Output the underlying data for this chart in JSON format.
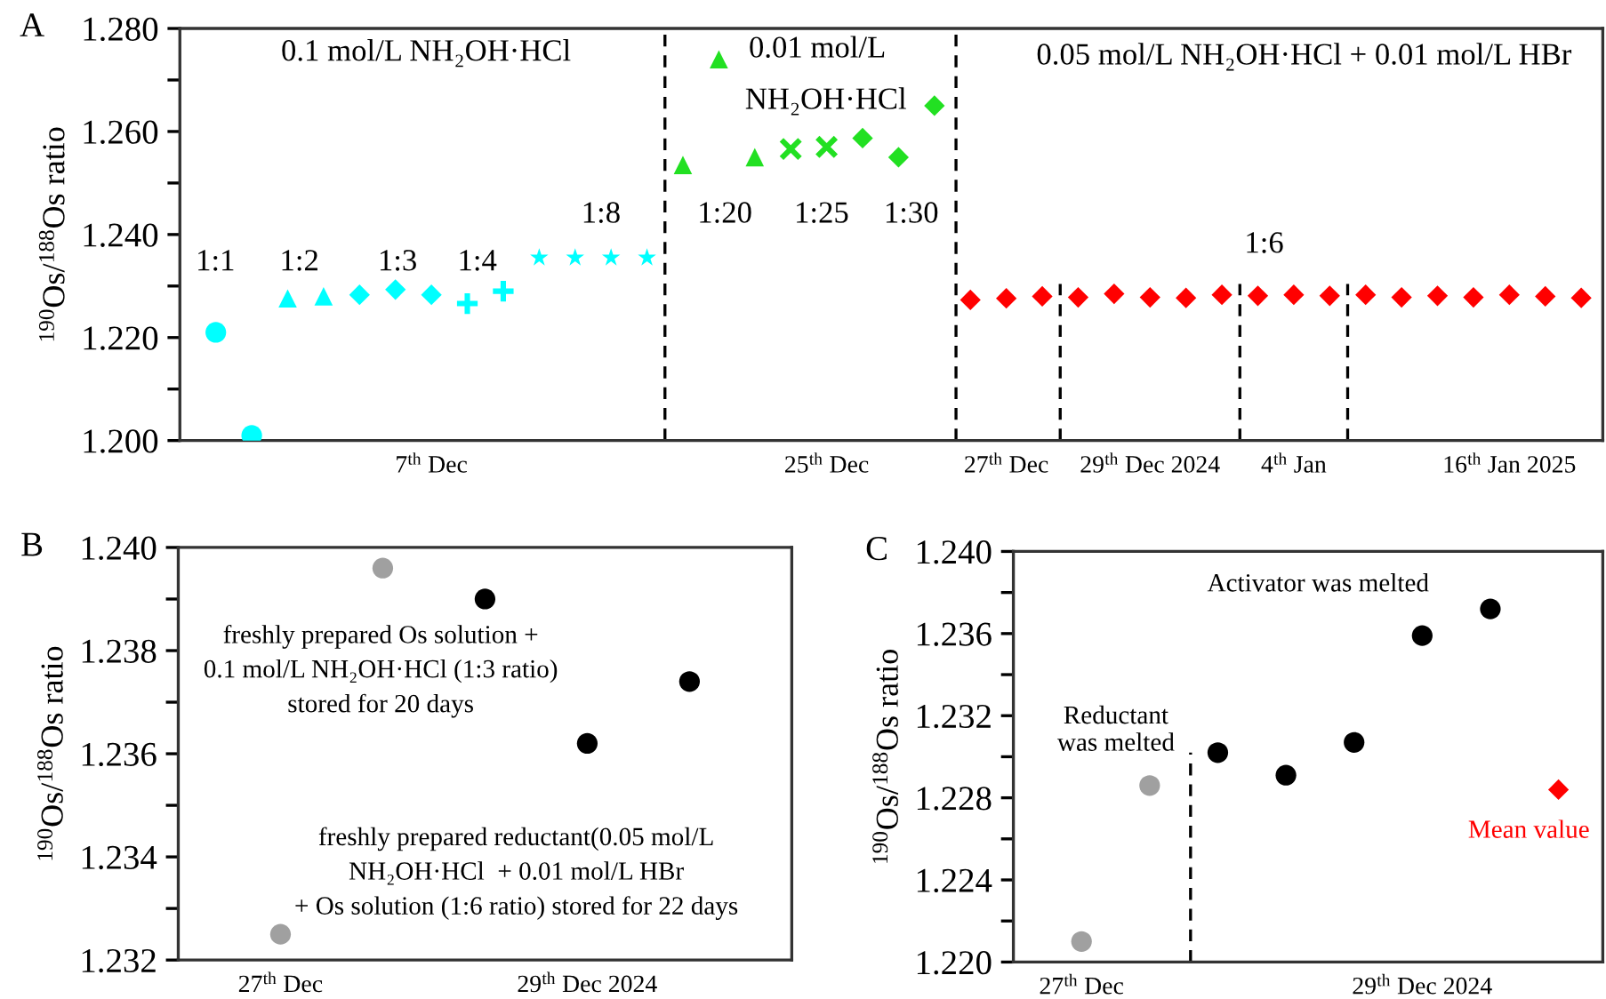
{
  "chart_data": [
    {
      "type": "scatter",
      "title": "A",
      "ylabel": "$^{190}$Os/$^{188}$Os ratio",
      "ylim": [
        1.2,
        1.28
      ],
      "categories": [
        null,
        null,
        null,
        null,
        null,
        null,
        "7$^{th}$ Dec",
        null,
        null,
        null,
        null,
        null,
        null,
        null,
        null,
        null,
        null,
        "25$^{th}$ Dec",
        null,
        null,
        null,
        null,
        "27$^{th}$ Dec",
        null,
        null,
        null,
        "29$^{th}$ Dec 2024",
        null,
        null,
        null,
        "4$^{th}$ Jan",
        null,
        null,
        null,
        null,
        null,
        "16$^{th}$ Jan 2025",
        null,
        null
      ],
      "yticks": [
        {
          "value": 1.2,
          "label": "1.200"
        },
        {
          "value": 1.21,
          "label": null
        },
        {
          "value": 1.22,
          "label": "1.220"
        },
        {
          "value": 1.23,
          "label": null
        },
        {
          "value": 1.24,
          "label": "1.240"
        },
        {
          "value": 1.25,
          "label": null
        },
        {
          "value": 1.26,
          "label": "1.260"
        },
        {
          "value": 1.27,
          "label": null
        },
        {
          "value": 1.28,
          "label": "1.280"
        }
      ],
      "series": [
        {
          "color": "#00ffff",
          "marker": "circle",
          "values": [
            1.221,
            1.201,
            null,
            null,
            null,
            null,
            null,
            null,
            null,
            null,
            null,
            null,
            null,
            null,
            null,
            null,
            null,
            null,
            null,
            null,
            null,
            null,
            null,
            null,
            null,
            null,
            null,
            null,
            null,
            null,
            null,
            null,
            null,
            null,
            null,
            null,
            null,
            null,
            null
          ]
        },
        {
          "color": "#00ffff",
          "marker": "triangle",
          "values": [
            null,
            null,
            1.2276,
            1.228,
            null,
            null,
            null,
            null,
            null,
            null,
            null,
            null,
            null,
            null,
            null,
            null,
            null,
            null,
            null,
            null,
            null,
            null,
            null,
            null,
            null,
            null,
            null,
            null,
            null,
            null,
            null,
            null,
            null,
            null,
            null,
            null,
            null,
            null,
            null
          ]
        },
        {
          "color": "#00ffff",
          "marker": "diamond",
          "values": [
            null,
            null,
            null,
            null,
            1.2283,
            1.2293,
            1.2283,
            null,
            null,
            null,
            null,
            null,
            null,
            null,
            null,
            null,
            null,
            null,
            null,
            null,
            null,
            null,
            null,
            null,
            null,
            null,
            null,
            null,
            null,
            null,
            null,
            null,
            null,
            null,
            null,
            null,
            null,
            null,
            null
          ]
        },
        {
          "color": "#00ffff",
          "marker": "plus",
          "values": [
            null,
            null,
            null,
            null,
            null,
            null,
            null,
            1.2266,
            1.229,
            null,
            null,
            null,
            null,
            null,
            null,
            null,
            null,
            null,
            null,
            null,
            null,
            null,
            null,
            null,
            null,
            null,
            null,
            null,
            null,
            null,
            null,
            null,
            null,
            null,
            null,
            null,
            null,
            null,
            null
          ]
        },
        {
          "color": "#00ffff",
          "marker": "star",
          "values": [
            null,
            null,
            null,
            null,
            null,
            null,
            null,
            null,
            null,
            1.2355,
            1.2355,
            1.2355,
            1.2355,
            null,
            null,
            null,
            null,
            null,
            null,
            null,
            null,
            null,
            null,
            null,
            null,
            null,
            null,
            null,
            null,
            null,
            null,
            null,
            null,
            null,
            null,
            null,
            null,
            null,
            null
          ]
        },
        {
          "color": "#22e022",
          "marker": "triangle",
          "values": [
            null,
            null,
            null,
            null,
            null,
            null,
            null,
            null,
            null,
            null,
            null,
            null,
            null,
            1.2535,
            1.274,
            1.255,
            null,
            null,
            null,
            null,
            null,
            null,
            null,
            null,
            null,
            null,
            null,
            null,
            null,
            null,
            null,
            null,
            null,
            null,
            null,
            null,
            null,
            null,
            null
          ]
        },
        {
          "color": "#22e022",
          "marker": "cross",
          "values": [
            null,
            null,
            null,
            null,
            null,
            null,
            null,
            null,
            null,
            null,
            null,
            null,
            null,
            null,
            null,
            null,
            1.2566,
            1.257,
            null,
            null,
            null,
            null,
            null,
            null,
            null,
            null,
            null,
            null,
            null,
            null,
            null,
            null,
            null,
            null,
            null,
            null,
            null,
            null,
            null
          ]
        },
        {
          "color": "#22e022",
          "marker": "diamond",
          "values": [
            null,
            null,
            null,
            null,
            null,
            null,
            null,
            null,
            null,
            null,
            null,
            null,
            null,
            null,
            null,
            null,
            null,
            null,
            1.2587,
            1.255,
            1.265,
            null,
            null,
            null,
            null,
            null,
            null,
            null,
            null,
            null,
            null,
            null,
            null,
            null,
            null,
            null,
            null,
            null,
            null
          ]
        },
        {
          "color": "#ff0000",
          "marker": "diamond",
          "values": [
            null,
            null,
            null,
            null,
            null,
            null,
            null,
            null,
            null,
            null,
            null,
            null,
            null,
            null,
            null,
            null,
            null,
            null,
            null,
            null,
            null,
            1.2273,
            1.2276,
            1.228,
            1.2278,
            1.2285,
            1.2278,
            1.2277,
            1.2283,
            1.2281,
            1.2283,
            1.2281,
            1.2283,
            1.2278,
            1.2281,
            1.2278,
            1.2283,
            1.228,
            1.2277
          ]
        }
      ],
      "annotations": [
        "0.1 mol/L NH₂OH·HCl",
        "1:1",
        "1:2",
        "1:3",
        "1:4",
        "1:8",
        "0.01 mol/L",
        "NH₂OH·HCl",
        "1:20",
        "1:25",
        "1:30",
        "0.05 mol/L NH₂OH·HCl + 0.01 mol/L HBr",
        "1:6"
      ]
    },
    {
      "type": "scatter",
      "title": "B",
      "ylabel": "$^{190}$Os/$^{188}$Os ratio",
      "ylim": [
        1.232,
        1.24
      ],
      "categories": [
        "27$^{th}$ Dec",
        null,
        null,
        "29$^{th}$ Dec 2024",
        null
      ],
      "yticks": [
        {
          "value": 1.232,
          "label": "1.232"
        },
        {
          "value": 1.233,
          "label": null
        },
        {
          "value": 1.234,
          "label": "1.234"
        },
        {
          "value": 1.235,
          "label": null
        },
        {
          "value": 1.236,
          "label": "1.236"
        },
        {
          "value": 1.237,
          "label": null
        },
        {
          "value": 1.238,
          "label": "1.238"
        },
        {
          "value": 1.239,
          "label": null
        },
        {
          "value": 1.24,
          "label": "1.240"
        }
      ],
      "series": [
        {
          "color": "#a0a0a0",
          "marker": "circle",
          "values": [
            1.2325,
            1.2396,
            null,
            null,
            null
          ]
        },
        {
          "color": "#000000",
          "marker": "circle",
          "values": [
            null,
            null,
            1.239,
            1.2362,
            1.2374
          ]
        }
      ],
      "annotations": [
        "freshly prepared Os solution +\n0.1 mol/L NH₂OH·HCl (1:3 ratio)\nstored for 20 days",
        "freshly prepared reductant(0.05 mol/L\nNH₂OH·HCl  + 0.01 mol/L HBr\n+ Os solution (1:6 ratio) stored for 22 days"
      ]
    },
    {
      "type": "scatter",
      "title": "C",
      "ylabel": "$^{190}$Os/$^{188}$Os ratio",
      "ylim": [
        1.22,
        1.24
      ],
      "categories": [
        "27$^{th}$ Dec",
        null,
        null,
        null,
        null,
        "29$^{th}$ Dec 2024",
        null,
        null
      ],
      "yticks": [
        {
          "value": 1.22,
          "label": "1.220"
        },
        {
          "value": 1.222,
          "label": null
        },
        {
          "value": 1.224,
          "label": "1.224"
        },
        {
          "value": 1.226,
          "label": null
        },
        {
          "value": 1.228,
          "label": "1.228"
        },
        {
          "value": 1.23,
          "label": null
        },
        {
          "value": 1.232,
          "label": "1.232"
        },
        {
          "value": 1.234,
          "label": null
        },
        {
          "value": 1.236,
          "label": "1.236"
        },
        {
          "value": 1.238,
          "label": null
        },
        {
          "value": 1.24,
          "label": "1.240"
        }
      ],
      "series": [
        {
          "color": "#a0a0a0",
          "marker": "circle",
          "values": [
            1.221,
            1.2286,
            null,
            null,
            null,
            null,
            null,
            null
          ]
        },
        {
          "color": "#000000",
          "marker": "circle",
          "values": [
            null,
            null,
            1.2302,
            1.2291,
            1.2307,
            1.2359,
            1.2372,
            null
          ]
        },
        {
          "name": "Mean value",
          "color": "#ff0000",
          "marker": "diamond",
          "values": [
            null,
            null,
            null,
            null,
            null,
            null,
            null,
            1.2284
          ]
        }
      ],
      "annotations": [
        "Activator was melted",
        "Reductant\nwas melted"
      ]
    }
  ]
}
